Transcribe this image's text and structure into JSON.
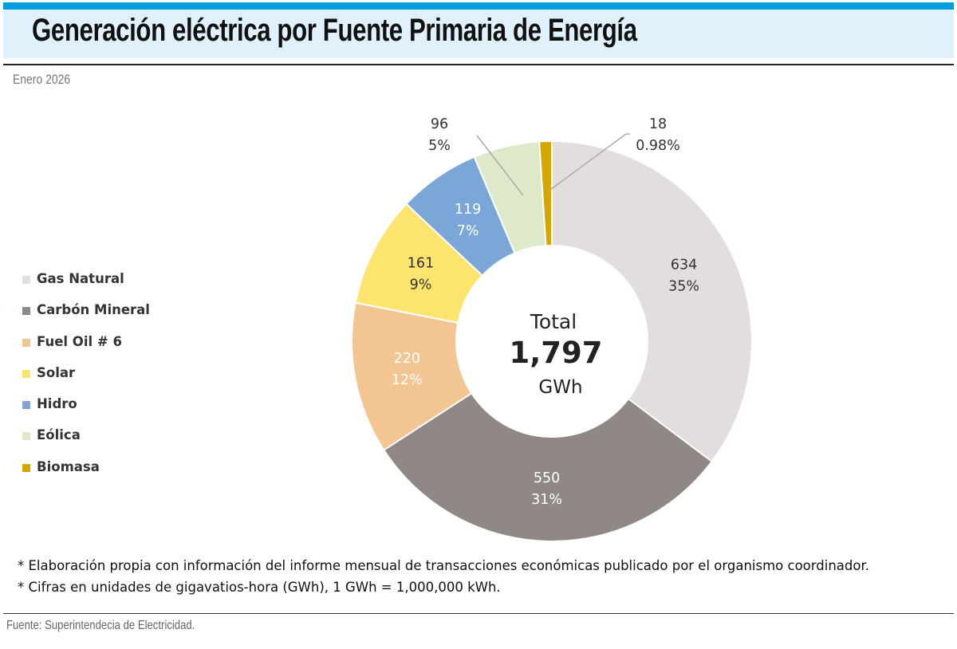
{
  "header": {
    "title": "Generación eléctrica por Fuente Primaria de Energía",
    "subtitle": "Enero 2026"
  },
  "chart_data": {
    "type": "pie",
    "variant": "donut",
    "start": "12 o'clock, clockwise",
    "center_label": {
      "line1": "Total",
      "value": "1,797",
      "unit": "GWh"
    },
    "legend_position": "left",
    "series": [
      {
        "name": "Gas Natural",
        "value": 634,
        "label_value": "634",
        "label_pct": "35%",
        "color": "#e2dedd",
        "text_color": "#333333"
      },
      {
        "name": "Carbón Mineral",
        "value": 550,
        "label_value": "550",
        "label_pct": "31%",
        "color": "#8f8884",
        "text_color": "#ffffff"
      },
      {
        "name": "Fuel Oil # 6",
        "value": 220,
        "label_value": "220",
        "label_pct": "12%",
        "color": "#f3c592",
        "text_color": "#ffffff"
      },
      {
        "name": "Solar",
        "value": 161,
        "label_value": "161",
        "label_pct": "9%",
        "color": "#fce46e",
        "text_color": "#333333"
      },
      {
        "name": "Hidro",
        "value": 119,
        "label_value": "119",
        "label_pct": "7%",
        "color": "#7aa7d8",
        "text_color": "#ffffff"
      },
      {
        "name": "Eólica",
        "value": 96,
        "label_value": "96",
        "label_pct": "5%",
        "color": "#dde9c8",
        "text_color": "#333333"
      },
      {
        "name": "Biomasa",
        "value": 18,
        "label_value": "18",
        "label_pct": "0.98%",
        "color": "#d4a600",
        "text_color": "#333333"
      }
    ]
  },
  "notes": [
    "* Elaboración propia con información del informe mensual de transacciones económicas publicado por el organismo coordinador.",
    "* Cifras en unidades de gigavatios-hora (GWh), 1 GWh = 1,000,000 kWh."
  ],
  "source": "Fuente: Superintendecia de Electricidad."
}
